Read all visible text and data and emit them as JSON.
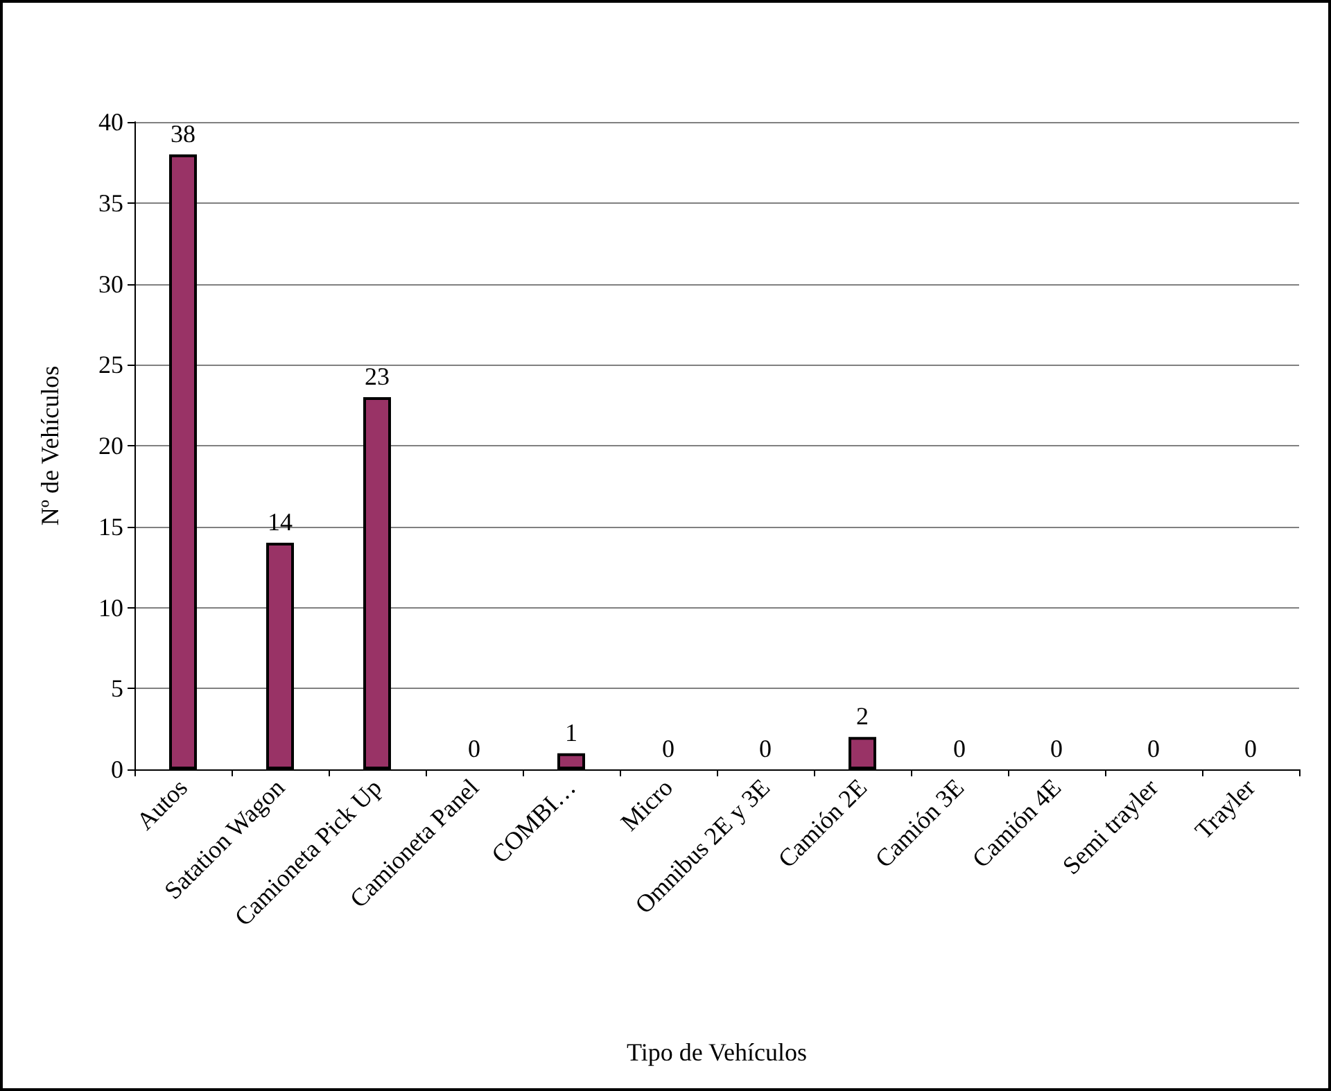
{
  "chart_data": {
    "type": "bar",
    "xlabel": "Tipo de Vehículos",
    "ylabel": "Nº de Vehículos",
    "categories": [
      "Autos",
      "Satation Wagon",
      "Camioneta Pick Up",
      "Camioneta Panel",
      "COMBI…",
      "Micro",
      "Omnibus 2E y 3E",
      "Camión 2E",
      "Camión 3E",
      "Camión 4E",
      "Semi trayler",
      "Trayler"
    ],
    "values": [
      38,
      14,
      23,
      0,
      1,
      0,
      0,
      2,
      0,
      0,
      0,
      0
    ],
    "color": "#993366",
    "ylim": [
      0,
      40
    ],
    "yticks": [
      0,
      5,
      10,
      15,
      20,
      25,
      30,
      35,
      40
    ],
    "grid": "y",
    "data_labels": true
  }
}
